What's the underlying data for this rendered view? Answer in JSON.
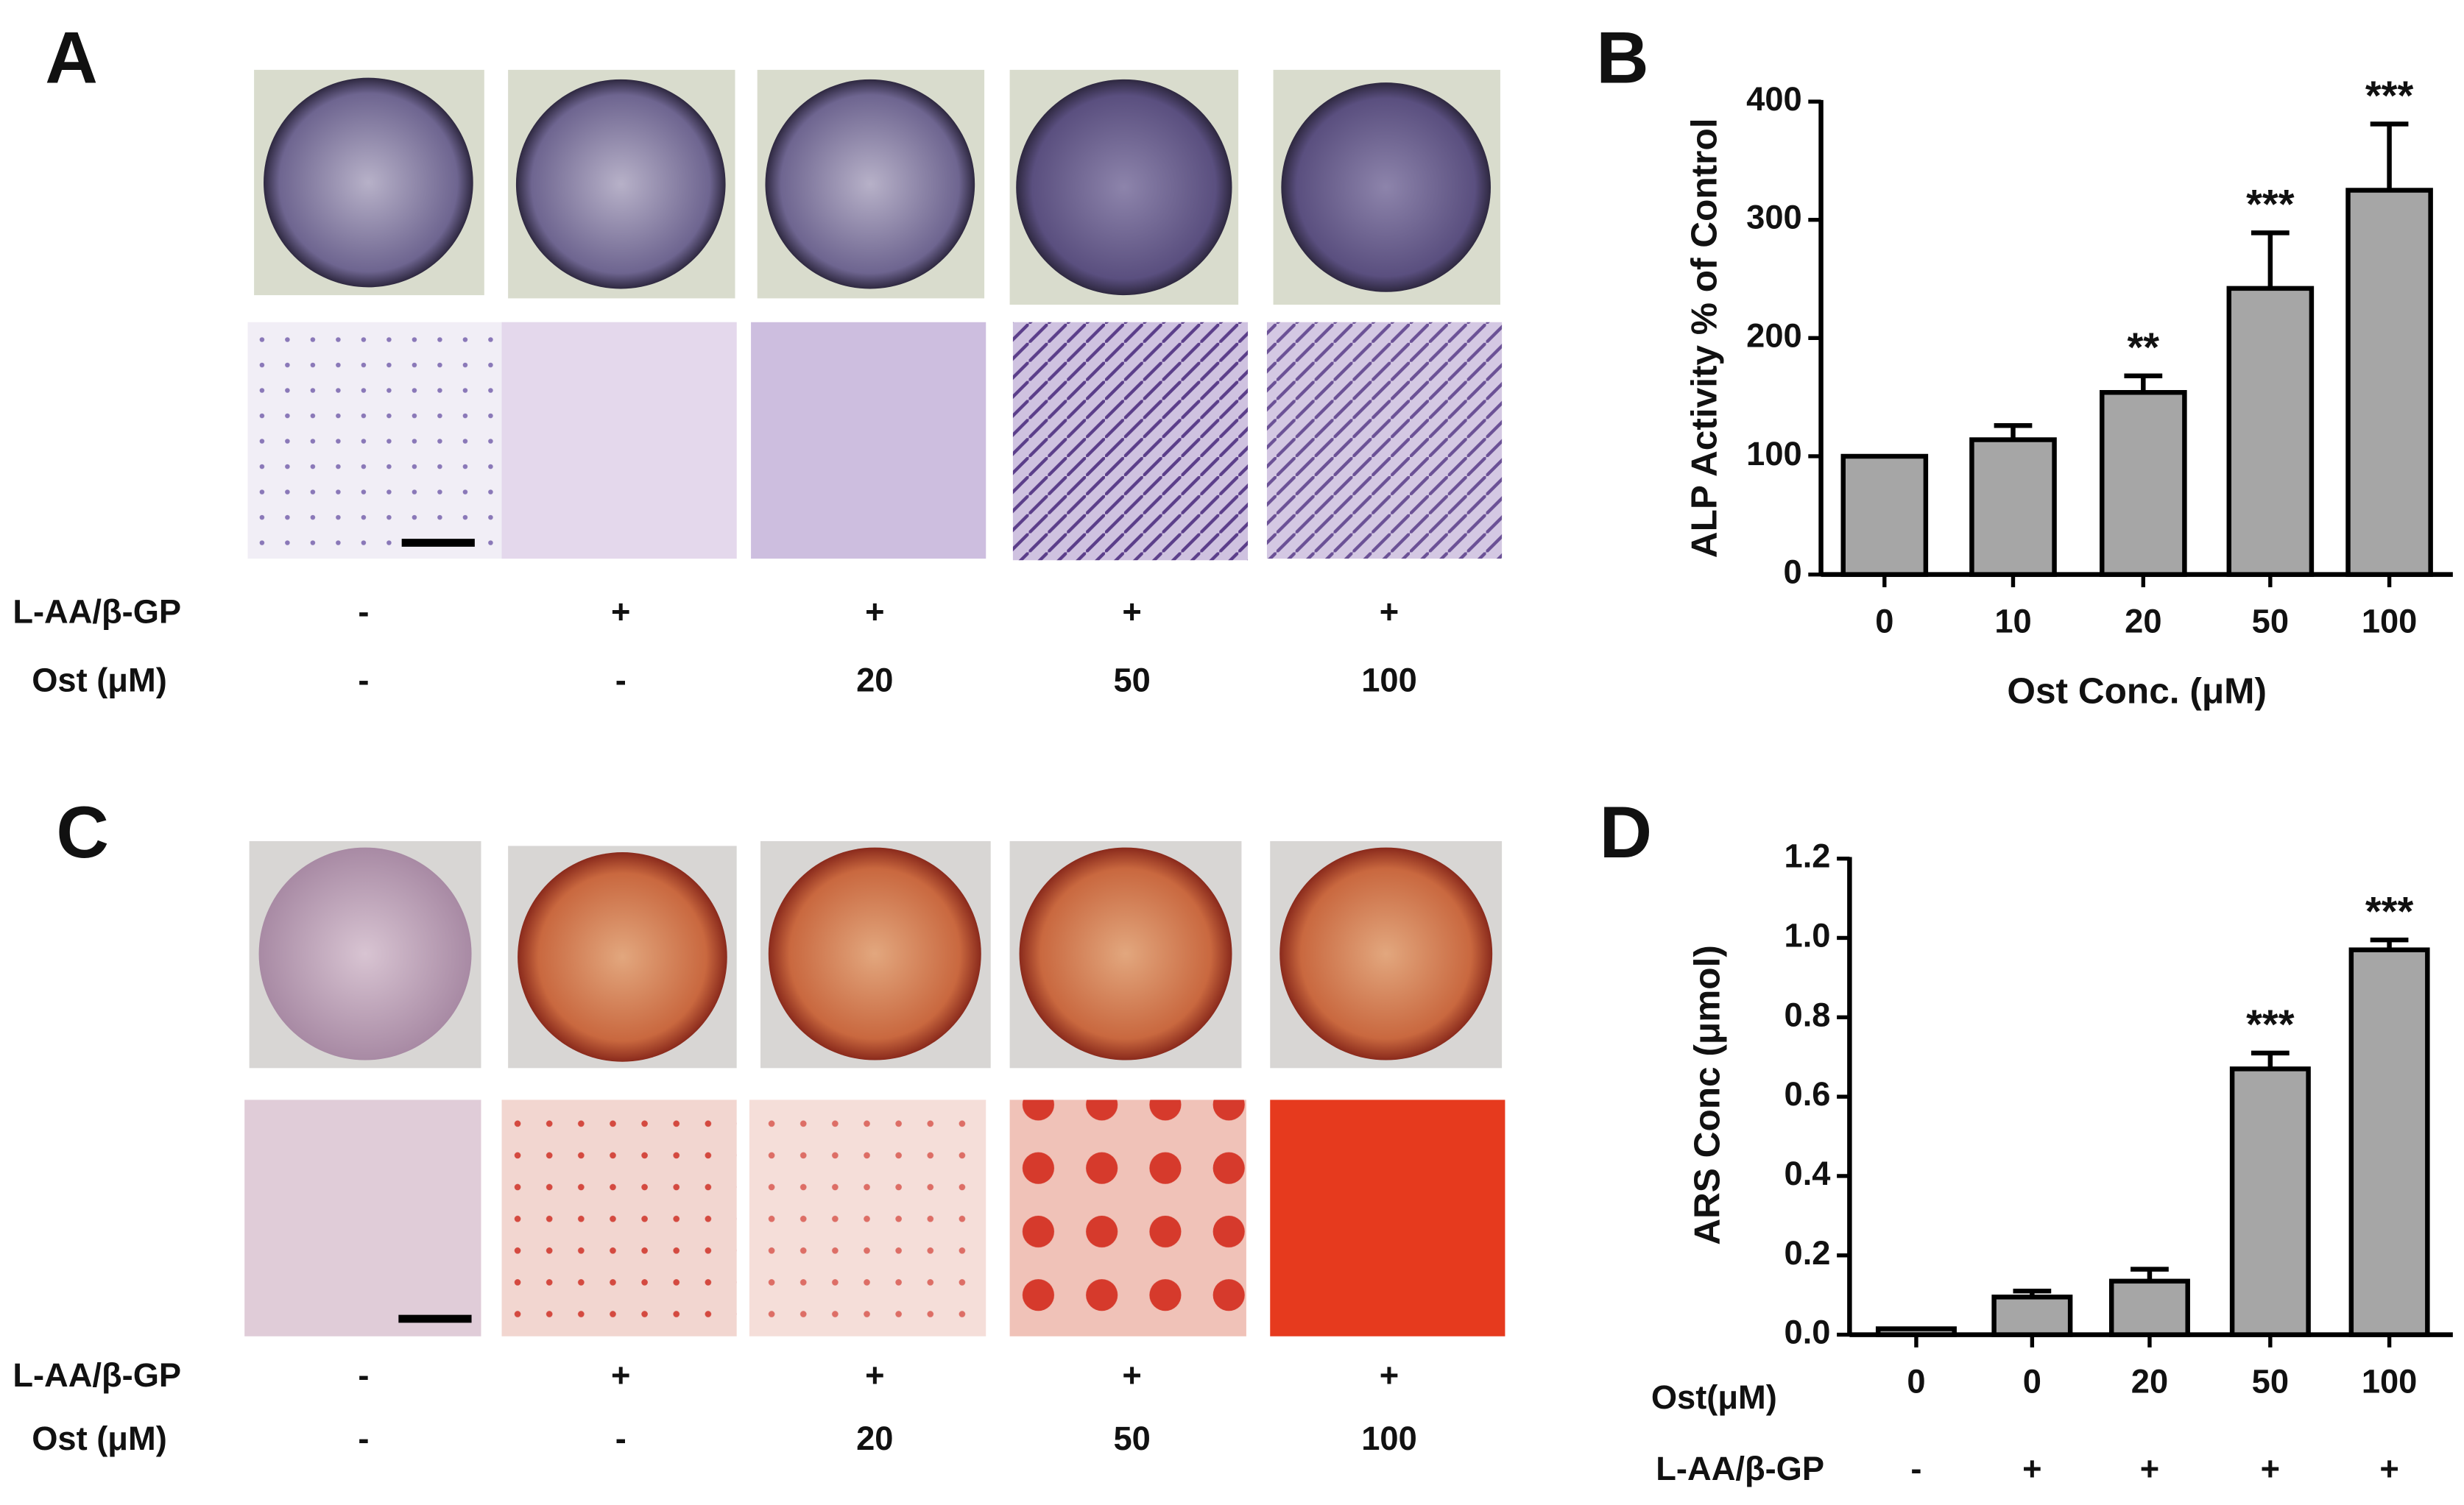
{
  "panels": [
    {
      "label": "A",
      "rows": [
        {
          "name": "L-AA/β-GP",
          "values": [
            "-",
            "+",
            "+",
            "+",
            "+"
          ]
        },
        {
          "name": "Ost (μM)",
          "values": [
            "-",
            "-",
            "20",
            "50",
            "100"
          ]
        }
      ]
    },
    {
      "label": "C",
      "rows": [
        {
          "name": "L-AA/β-GP",
          "values": [
            "-",
            "+",
            "+",
            "+",
            "+"
          ]
        },
        {
          "name": "Ost (μM)",
          "values": [
            "-",
            "-",
            "20",
            "50",
            "100"
          ]
        }
      ]
    }
  ],
  "chart_data": [
    {
      "type": "bar",
      "panel": "B",
      "ylabel": "ALP Activity % of Control",
      "xlabel": "Ost Conc. (μM)",
      "categories": [
        "0",
        "10",
        "20",
        "50",
        "100"
      ],
      "values": [
        100,
        114,
        154,
        242,
        325
      ],
      "errors": [
        null,
        12,
        14,
        47,
        56
      ],
      "annotations": [
        null,
        null,
        "**",
        "***",
        "***"
      ],
      "color": "#a6a6a6",
      "ylim": [
        0,
        400
      ],
      "yticks": [
        0,
        100,
        200,
        300,
        400
      ]
    },
    {
      "type": "bar",
      "panel": "D",
      "ylabel": "ARS Conc (μmol)",
      "category_label": "Ost(μM)",
      "categories": [
        "0",
        "0",
        "20",
        "50",
        "100"
      ],
      "second_row": {
        "name": "L-AA/β-GP",
        "labels": [
          "-",
          "+",
          "+",
          "+",
          "+"
        ]
      },
      "values": [
        0.015,
        0.095,
        0.135,
        0.67,
        0.97
      ],
      "errors": [
        null,
        0.015,
        0.03,
        0.04,
        0.025
      ],
      "annotations": [
        null,
        null,
        null,
        "***",
        "***"
      ],
      "color": "#a6a6a6",
      "ylim": [
        0,
        1.2
      ],
      "yticks": [
        {
          "value": 0,
          "label": "0.0"
        },
        0.2,
        0.4,
        0.6,
        0.8,
        {
          "value": 1,
          "label": "1.0"
        },
        1.2
      ]
    }
  ]
}
